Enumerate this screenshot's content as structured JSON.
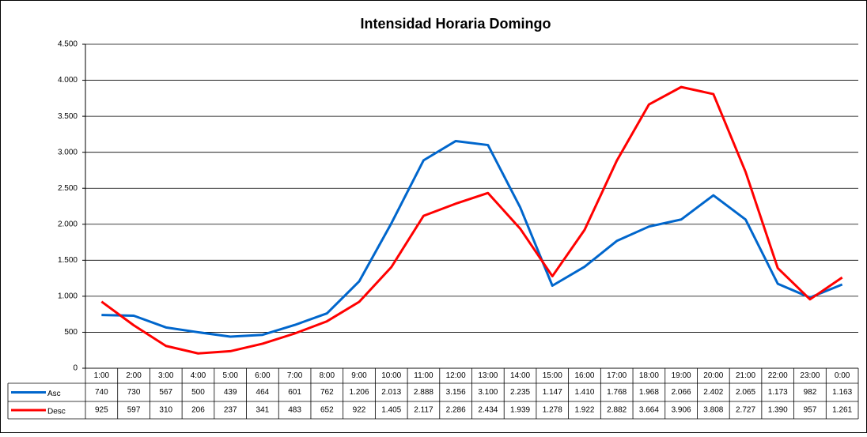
{
  "chart_data": {
    "type": "line",
    "title": "Intensidad Horaria Domingo",
    "categories": [
      "1:00",
      "2:00",
      "3:00",
      "4:00",
      "5:00",
      "6:00",
      "7:00",
      "8:00",
      "9:00",
      "10:00",
      "11:00",
      "12:00",
      "13:00",
      "14:00",
      "15:00",
      "16:00",
      "17:00",
      "18:00",
      "19:00",
      "20:00",
      "21:00",
      "22:00",
      "23:00",
      "0:00"
    ],
    "series": [
      {
        "name": "Asc",
        "color": "#0066cc",
        "values": [
          740,
          730,
          567,
          500,
          439,
          464,
          601,
          762,
          1206,
          2013,
          2888,
          3156,
          3100,
          2235,
          1147,
          1410,
          1768,
          1968,
          2066,
          2402,
          2065,
          1173,
          982,
          1163
        ],
        "value_labels": [
          "740",
          "730",
          "567",
          "500",
          "439",
          "464",
          "601",
          "762",
          "1.206",
          "2.013",
          "2.888",
          "3.156",
          "3.100",
          "2.235",
          "1.147",
          "1.410",
          "1.768",
          "1.968",
          "2.066",
          "2.402",
          "2.065",
          "1.173",
          "982",
          "1.163"
        ]
      },
      {
        "name": "Desc",
        "color": "#ff0000",
        "values": [
          925,
          597,
          310,
          206,
          237,
          341,
          483,
          652,
          922,
          1405,
          2117,
          2286,
          2434,
          1939,
          1278,
          1922,
          2882,
          3664,
          3906,
          3808,
          2727,
          1390,
          957,
          1261
        ],
        "value_labels": [
          "925",
          "597",
          "310",
          "206",
          "237",
          "341",
          "483",
          "652",
          "922",
          "1.405",
          "2.117",
          "2.286",
          "2.434",
          "1.939",
          "1.278",
          "1.922",
          "2.882",
          "3.664",
          "3.906",
          "3.808",
          "2.727",
          "1.390",
          "957",
          "1.261"
        ]
      }
    ],
    "ylim": [
      0,
      4500
    ],
    "yticks": [
      0,
      500,
      {
        "value": 1000,
        "label": "1.000"
      },
      {
        "value": 1500,
        "label": "1.500"
      },
      {
        "value": 2000,
        "label": "2.000"
      },
      {
        "value": 2500,
        "label": "2.500"
      },
      {
        "value": 3000,
        "label": "3.000"
      },
      {
        "value": 3500,
        "label": "3.500"
      },
      {
        "value": 4000,
        "label": "4.000"
      },
      {
        "value": 4500,
        "label": "4.500"
      }
    ],
    "grid": true
  }
}
